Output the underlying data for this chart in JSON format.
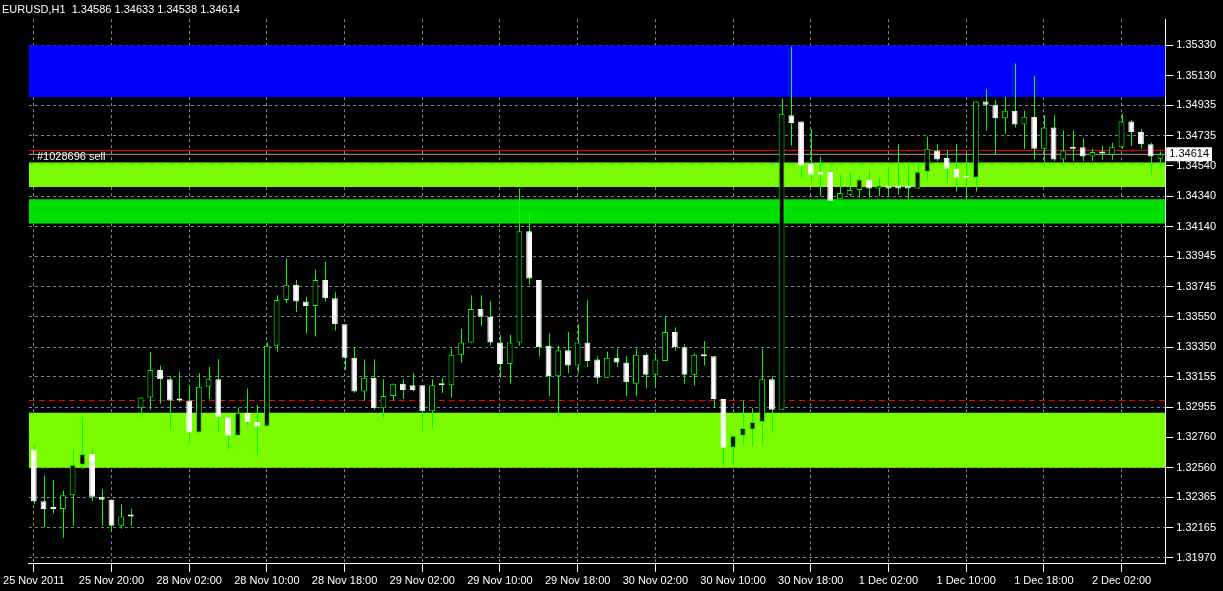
{
  "chart_data": {
    "type": "candlestick",
    "title": "EURUSD,H1  1.34586 1.34633 1.34538 1.34614",
    "categories": [
      "25 Nov 2011",
      null,
      null,
      null,
      null,
      null,
      null,
      null,
      "25 Nov 20:00",
      null,
      null,
      null,
      null,
      null,
      null,
      null,
      "28 Nov 02:00",
      null,
      null,
      null,
      null,
      null,
      null,
      null,
      "28 Nov 10:00",
      null,
      null,
      null,
      null,
      null,
      null,
      null,
      "28 Nov 18:00",
      null,
      null,
      null,
      null,
      null,
      null,
      null,
      "29 Nov 02:00",
      null,
      null,
      null,
      null,
      null,
      null,
      null,
      "29 Nov 10:00",
      null,
      null,
      null,
      null,
      null,
      null,
      null,
      "29 Nov 18:00",
      null,
      null,
      null,
      null,
      null,
      null,
      null,
      "30 Nov 02:00",
      null,
      null,
      null,
      null,
      null,
      null,
      null,
      "30 Nov 10:00",
      null,
      null,
      null,
      null,
      null,
      null,
      null,
      "30 Nov 18:00",
      null,
      null,
      null,
      null,
      null,
      null,
      null,
      "1 Dec 02:00",
      null,
      null,
      null,
      null,
      null,
      null,
      null,
      "1 Dec 10:00",
      null,
      null,
      null,
      null,
      null,
      null,
      null,
      "1 Dec 18:00",
      null,
      null,
      null,
      null,
      null,
      null,
      null,
      "2 Dec 02:00",
      null,
      null,
      null,
      null
    ],
    "ohlc": [
      [
        1.3268,
        1.3271,
        1.3232,
        1.3234
      ],
      [
        1.3234,
        1.3251,
        1.3217,
        1.3229
      ],
      [
        1.3229,
        1.3248,
        1.3226,
        1.3229
      ],
      [
        1.3229,
        1.3241,
        1.321,
        1.3238
      ],
      [
        1.3238,
        1.3268,
        1.3218,
        1.3258
      ],
      [
        1.3258,
        1.3289,
        1.3255,
        1.3265
      ],
      [
        1.3265,
        1.3268,
        1.3234,
        1.3237
      ],
      [
        1.3237,
        1.3242,
        1.3218,
        1.3235
      ],
      [
        1.3235,
        1.3235,
        1.3214,
        1.3218
      ],
      [
        1.3218,
        1.3232,
        1.3216,
        1.3224
      ],
      [
        1.3224,
        1.3229,
        1.3218,
        1.3224
      ],
      [
        1.3295,
        1.3302,
        1.3289,
        1.3302
      ],
      [
        1.3302,
        1.3332,
        1.3294,
        1.332
      ],
      [
        1.332,
        1.3323,
        1.3298,
        1.3314
      ],
      [
        1.3314,
        1.3316,
        1.3281,
        1.33
      ],
      [
        1.33,
        1.3319,
        1.3299,
        1.33
      ],
      [
        1.33,
        1.331,
        1.3272,
        1.3279
      ],
      [
        1.3279,
        1.3318,
        1.3279,
        1.3309
      ],
      [
        1.3309,
        1.3322,
        1.3301,
        1.3314
      ],
      [
        1.3314,
        1.3327,
        1.3279,
        1.3289
      ],
      [
        1.3289,
        1.3289,
        1.3268,
        1.3277
      ],
      [
        1.3277,
        1.3295,
        1.3277,
        1.3292
      ],
      [
        1.3292,
        1.3308,
        1.3284,
        1.3286
      ],
      [
        1.3286,
        1.3297,
        1.3264,
        1.3283
      ],
      [
        1.3283,
        1.3338,
        1.3283,
        1.3336
      ],
      [
        1.3336,
        1.3369,
        1.3332,
        1.3366
      ],
      [
        1.3366,
        1.3393,
        1.3364,
        1.3376
      ],
      [
        1.3376,
        1.3379,
        1.3358,
        1.3365
      ],
      [
        1.3365,
        1.3368,
        1.3344,
        1.3362
      ],
      [
        1.3362,
        1.3386,
        1.3342,
        1.3379
      ],
      [
        1.3379,
        1.3391,
        1.3365,
        1.3367
      ],
      [
        1.3367,
        1.3371,
        1.3346,
        1.335
      ],
      [
        1.335,
        1.335,
        1.332,
        1.3328
      ],
      [
        1.3328,
        1.3335,
        1.3305,
        1.3306
      ],
      [
        1.3306,
        1.3327,
        1.33,
        1.3315
      ],
      [
        1.3315,
        1.3327,
        1.3294,
        1.3295
      ],
      [
        1.3295,
        1.3314,
        1.3288,
        1.3303
      ],
      [
        1.3303,
        1.3311,
        1.33,
        1.3311
      ],
      [
        1.3311,
        1.3314,
        1.3301,
        1.3307
      ],
      [
        1.331,
        1.3318,
        1.3306,
        1.3307
      ],
      [
        1.331,
        1.331,
        1.328,
        1.3293
      ],
      [
        1.3293,
        1.3314,
        1.3282,
        1.331
      ],
      [
        1.331,
        1.3315,
        1.3305,
        1.331
      ],
      [
        1.331,
        1.3334,
        1.3302,
        1.333
      ],
      [
        1.333,
        1.3347,
        1.3325,
        1.3338
      ],
      [
        1.3338,
        1.3369,
        1.3338,
        1.336
      ],
      [
        1.336,
        1.3369,
        1.3349,
        1.3355
      ],
      [
        1.3355,
        1.3365,
        1.3336,
        1.3338
      ],
      [
        1.3338,
        1.3343,
        1.3315,
        1.3324
      ],
      [
        1.3324,
        1.3343,
        1.3311,
        1.3338
      ],
      [
        1.3338,
        1.3439,
        1.3336,
        1.3411
      ],
      [
        1.3411,
        1.3424,
        1.3376,
        1.338
      ],
      [
        1.3379,
        1.3379,
        1.3329,
        1.3335
      ],
      [
        1.3336,
        1.3344,
        1.3303,
        1.3316
      ],
      [
        1.3316,
        1.3336,
        1.329,
        1.3333
      ],
      [
        1.3333,
        1.3345,
        1.3318,
        1.3323
      ],
      [
        1.3323,
        1.335,
        1.3318,
        1.3338
      ],
      [
        1.3338,
        1.3366,
        1.3322,
        1.3326
      ],
      [
        1.3327,
        1.3329,
        1.3311,
        1.3315
      ],
      [
        1.3315,
        1.3332,
        1.3315,
        1.3328
      ],
      [
        1.3328,
        1.3334,
        1.3322,
        1.3325
      ],
      [
        1.3325,
        1.3329,
        1.3303,
        1.3312
      ],
      [
        1.3311,
        1.3334,
        1.3303,
        1.333
      ],
      [
        1.333,
        1.3331,
        1.3308,
        1.3317
      ],
      [
        1.3317,
        1.3331,
        1.3309,
        1.3327
      ],
      [
        1.3326,
        1.3355,
        1.3326,
        1.3345
      ],
      [
        1.3345,
        1.3348,
        1.3333,
        1.3335
      ],
      [
        1.3335,
        1.3337,
        1.3311,
        1.3317
      ],
      [
        1.3317,
        1.3331,
        1.331,
        1.333
      ],
      [
        1.333,
        1.3339,
        1.3323,
        1.3329
      ],
      [
        1.3329,
        1.3329,
        1.3295,
        1.3301
      ],
      [
        1.3301,
        1.3301,
        1.3257,
        1.3269
      ],
      [
        1.3269,
        1.3277,
        1.3258,
        1.3277
      ],
      [
        1.3277,
        1.33,
        1.3271,
        1.3282
      ],
      [
        1.3281,
        1.3295,
        1.327,
        1.3286
      ],
      [
        1.3286,
        1.3334,
        1.3271,
        1.3314
      ],
      [
        1.3314,
        1.3316,
        1.328,
        1.3294
      ],
      [
        1.3294,
        1.3498,
        1.3294,
        1.3488
      ],
      [
        1.3487,
        1.3532,
        1.3467,
        1.3482
      ],
      [
        1.3483,
        1.3483,
        1.3446,
        1.3454
      ],
      [
        1.3455,
        1.3478,
        1.3443,
        1.3448
      ],
      [
        1.345,
        1.346,
        1.3434,
        1.3448
      ],
      [
        1.345,
        1.3451,
        1.3431,
        1.3431
      ],
      [
        1.3432,
        1.3448,
        1.3432,
        1.3436
      ],
      [
        1.3435,
        1.345,
        1.3434,
        1.3438
      ],
      [
        1.3438,
        1.3447,
        1.3433,
        1.3445
      ],
      [
        1.3445,
        1.3451,
        1.3433,
        1.3439
      ],
      [
        1.3439,
        1.3446,
        1.3434,
        1.3441
      ],
      [
        1.3441,
        1.3453,
        1.3434,
        1.3439
      ],
      [
        1.3441,
        1.3468,
        1.3435,
        1.3439
      ],
      [
        1.3441,
        1.3456,
        1.3432,
        1.3439
      ],
      [
        1.3439,
        1.3455,
        1.3439,
        1.345
      ],
      [
        1.345,
        1.3473,
        1.3444,
        1.3465
      ],
      [
        1.3464,
        1.3468,
        1.3457,
        1.3458
      ],
      [
        1.3459,
        1.3464,
        1.3443,
        1.3452
      ],
      [
        1.3452,
        1.3468,
        1.3437,
        1.3446
      ],
      [
        1.3446,
        1.3461,
        1.3432,
        1.3446
      ],
      [
        1.3446,
        1.3496,
        1.3437,
        1.3496
      ],
      [
        1.3496,
        1.3504,
        1.3477,
        1.3494
      ],
      [
        1.3494,
        1.3497,
        1.3461,
        1.3485
      ],
      [
        1.3485,
        1.3499,
        1.3475,
        1.349
      ],
      [
        1.349,
        1.3521,
        1.3479,
        1.3481
      ],
      [
        1.3481,
        1.349,
        1.3465,
        1.3486
      ],
      [
        1.3486,
        1.3513,
        1.3458,
        1.3465
      ],
      [
        1.3465,
        1.3487,
        1.3453,
        1.3479
      ],
      [
        1.3479,
        1.3487,
        1.3457,
        1.3458
      ],
      [
        1.3458,
        1.3477,
        1.3455,
        1.3464
      ],
      [
        1.3466,
        1.3477,
        1.3457,
        1.3465
      ],
      [
        1.3466,
        1.3472,
        1.3457,
        1.346
      ],
      [
        1.346,
        1.3465,
        1.3457,
        1.3463
      ],
      [
        1.3463,
        1.3467,
        1.3458,
        1.3462
      ],
      [
        1.3461,
        1.3469,
        1.3458,
        1.3466
      ],
      [
        1.3466,
        1.3488,
        1.3465,
        1.3483
      ],
      [
        1.3483,
        1.3484,
        1.3467,
        1.3476
      ],
      [
        1.3476,
        1.3478,
        1.3465,
        1.3468
      ],
      [
        1.3468,
        1.3469,
        1.3448,
        1.346
      ],
      [
        1.34586,
        1.34633,
        1.34538,
        1.34614
      ]
    ],
    "ylim": [
      1.3193,
      1.355
    ],
    "yticks": [
      {
        "value": 1.3533,
        "label": "1.35330"
      },
      {
        "value": 1.3513,
        "label": "1.35130"
      },
      {
        "value": 1.34935,
        "label": "1.34935"
      },
      {
        "value": 1.34735,
        "label": "1.34735"
      },
      {
        "value": 1.3454,
        "label": "1.34540"
      },
      {
        "value": 1.3434,
        "label": "1.34340"
      },
      {
        "value": 1.3414,
        "label": "1.34140"
      },
      {
        "value": 1.33945,
        "label": "1.33945"
      },
      {
        "value": 1.33745,
        "label": "1.33745"
      },
      {
        "value": 1.3355,
        "label": "1.33550"
      },
      {
        "value": 1.3335,
        "label": "1.33350"
      },
      {
        "value": 1.33155,
        "label": "1.33155"
      },
      {
        "value": 1.32955,
        "label": "1.32955"
      },
      {
        "value": 1.3276,
        "label": "1.32760"
      },
      {
        "value": 1.3256,
        "label": "1.32560"
      },
      {
        "value": 1.32365,
        "label": "1.32365"
      },
      {
        "value": 1.32165,
        "label": "1.32165"
      },
      {
        "value": 1.3197,
        "label": "1.31970"
      }
    ],
    "grid": true,
    "legend": false,
    "bands": [
      {
        "axis": "y",
        "from": 1.3499,
        "to": 1.3533,
        "color": "#0000ff"
      },
      {
        "axis": "y",
        "from": 1.344,
        "to": 1.3456,
        "color": "#7cfc00"
      },
      {
        "axis": "y",
        "from": 1.3416,
        "to": 1.3432,
        "color": "#00e000"
      },
      {
        "axis": "y",
        "from": 1.3256,
        "to": 1.3292,
        "color": "#7cfc00"
      }
    ],
    "ref_lines": [
      {
        "axis": "y",
        "value": 1.3464,
        "color": "#ff0000",
        "line_style": "solid"
      },
      {
        "axis": "y",
        "value": 1.34614,
        "label": "1.34614",
        "color": "#a0a0a0",
        "line_style": "solid"
      },
      {
        "axis": "y",
        "value": 1.3455,
        "label": "#1028696 sell",
        "color": "#00ff00",
        "line_style": "dashed"
      },
      {
        "axis": "y",
        "value": 1.33,
        "color": "#ff0000",
        "line_style": "dashed"
      }
    ]
  }
}
